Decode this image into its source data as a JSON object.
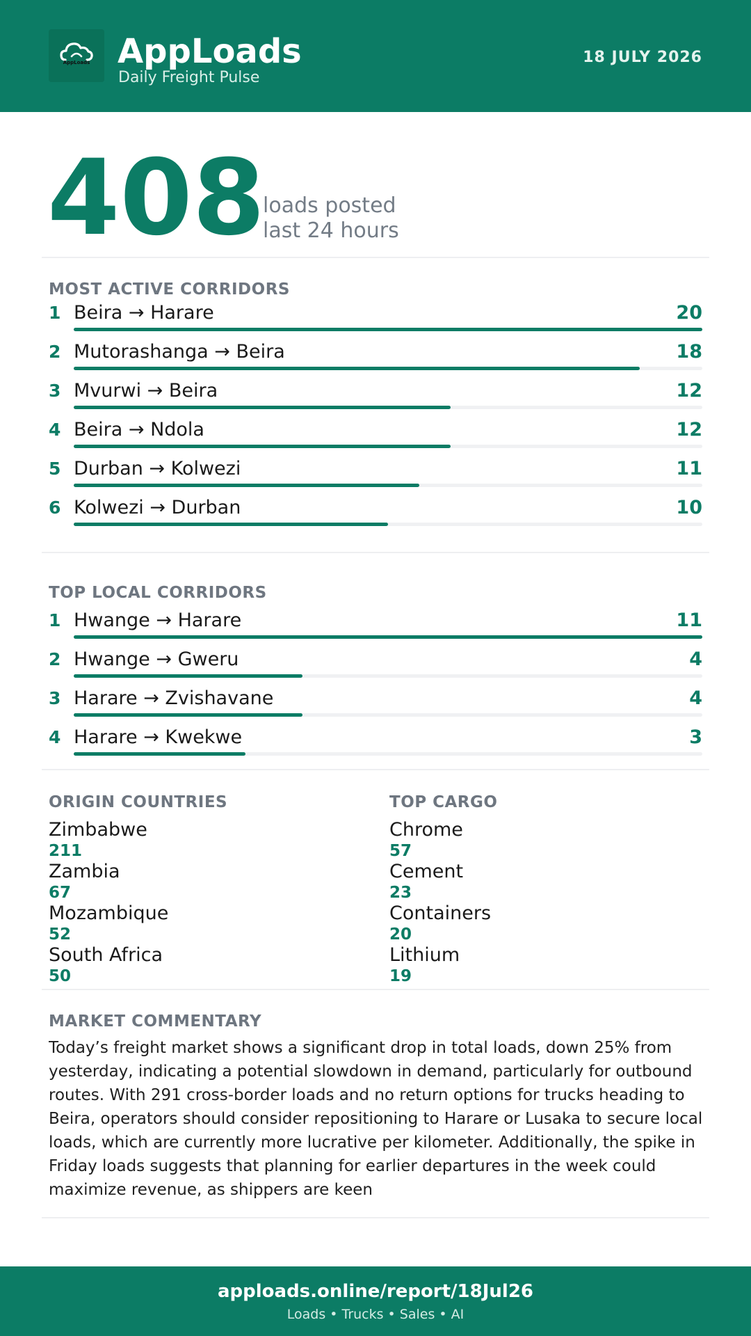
{
  "header": {
    "logo_text": "AppLoads",
    "title": "AppLoads",
    "subtitle": "Daily Freight Pulse",
    "date": "18 JULY 2026",
    "icon": "cloud-icon"
  },
  "hero": {
    "value": "408",
    "caption_line1": "loads posted",
    "caption_line2": "last 24 hours"
  },
  "active_corridors": {
    "title": "MOST ACTIVE CORRIDORS",
    "max": 20,
    "items": [
      {
        "rank": "1",
        "label": "Beira → Harare",
        "count": "20",
        "value": 20
      },
      {
        "rank": "2",
        "label": "Mutorashanga → Beira",
        "count": "18",
        "value": 18
      },
      {
        "rank": "3",
        "label": "Mvurwi → Beira",
        "count": "12",
        "value": 12
      },
      {
        "rank": "4",
        "label": "Beira → Ndola",
        "count": "12",
        "value": 12
      },
      {
        "rank": "5",
        "label": "Durban → Kolwezi",
        "count": "11",
        "value": 11
      },
      {
        "rank": "6",
        "label": "Kolwezi → Durban",
        "count": "10",
        "value": 10
      }
    ]
  },
  "local_corridors": {
    "title": "TOP LOCAL CORRIDORS",
    "max": 11,
    "items": [
      {
        "rank": "1",
        "label": "Hwange → Harare",
        "count": "11",
        "value": 11
      },
      {
        "rank": "2",
        "label": "Hwange → Gweru",
        "count": "4",
        "value": 4
      },
      {
        "rank": "3",
        "label": "Harare → Zvishavane",
        "count": "4",
        "value": 4
      },
      {
        "rank": "4",
        "label": "Harare → Kwekwe",
        "count": "3",
        "value": 3
      }
    ]
  },
  "origin_countries": {
    "title": "ORIGIN COUNTRIES",
    "items": [
      {
        "name": "Zimbabwe",
        "value": "211"
      },
      {
        "name": "Zambia",
        "value": "67"
      },
      {
        "name": "Mozambique",
        "value": "52"
      },
      {
        "name": "South Africa",
        "value": "50"
      }
    ]
  },
  "top_cargo": {
    "title": "TOP CARGO",
    "items": [
      {
        "name": "Chrome",
        "value": "57"
      },
      {
        "name": "Cement",
        "value": "23"
      },
      {
        "name": "Containers",
        "value": "20"
      },
      {
        "name": "Lithium",
        "value": "19"
      }
    ]
  },
  "commentary": {
    "title": "MARKET COMMENTARY",
    "text": "Today’s freight market shows a significant drop in total loads, down 25% from yesterday, indicating a potential slowdown in demand, particularly for outbound routes. With 291 cross-border loads and no return options for trucks heading to Beira, operators should consider repositioning to Harare or Lusaka to secure local loads, which are currently more lucrative per kilometer. Additionally, the spike in Friday loads suggests that planning for earlier departures in the week could maximize revenue, as shippers are keen"
  },
  "footer": {
    "url": "apploads.online/report/18Jul26",
    "tagline": "Loads • Trucks • Sales • AI"
  },
  "colors": {
    "brand": "#0c7c65",
    "muted": "#6e7680",
    "track": "#f0f1f3"
  }
}
